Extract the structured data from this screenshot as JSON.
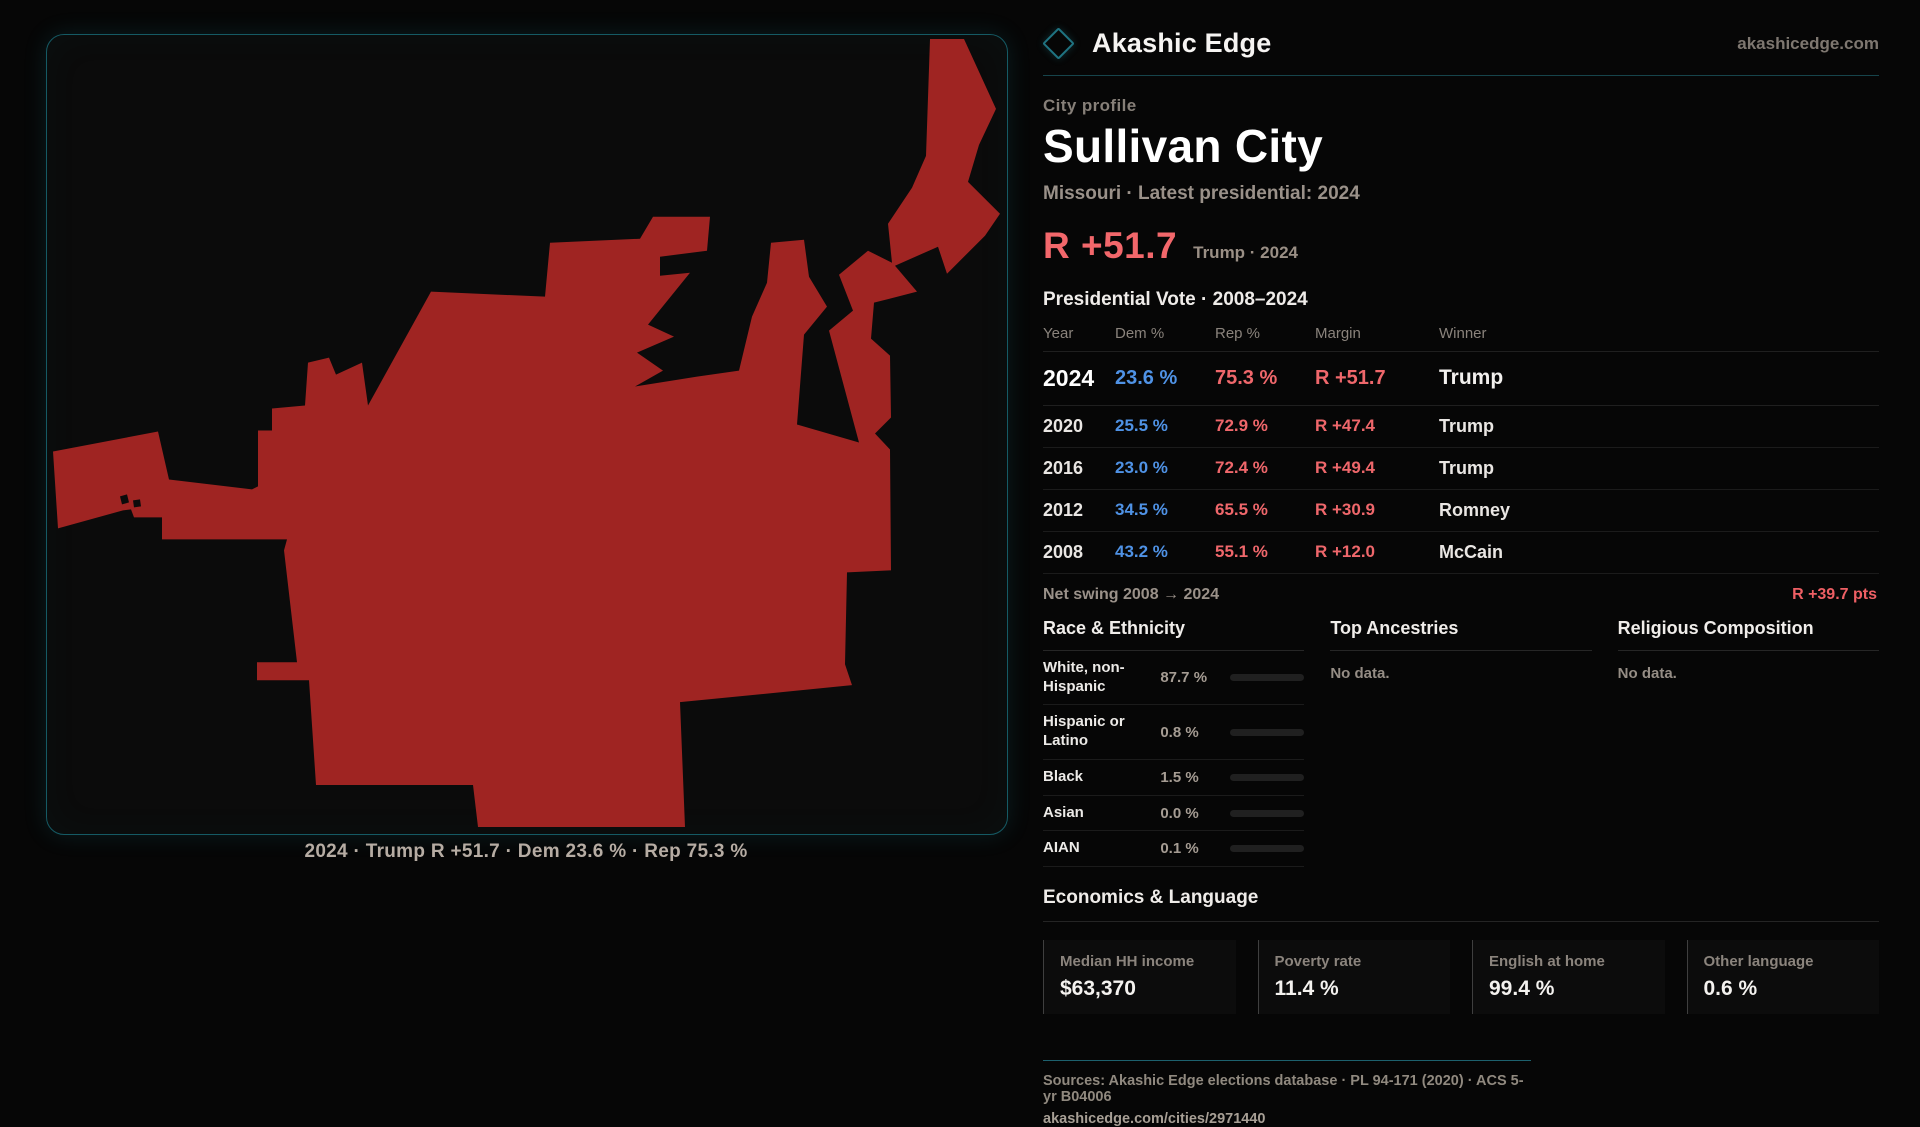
{
  "brand": {
    "name": "Akashic Edge",
    "domain": "akashicedge.com",
    "accent_teal": "#1f7381"
  },
  "profile": {
    "kicker": "City profile",
    "city": "Sullivan City",
    "subtitle": "Missouri · Latest presidential: 2024",
    "headline_margin": "R +51.7",
    "headline_context": "Trump · 2024",
    "margin_color": "#f2676b"
  },
  "map": {
    "caption": "2024 · Trump R +51.7 · Dem 23.6 % · Rep 75.3 %",
    "shape_color": "#9f2422",
    "panel_border_color": "#155a64"
  },
  "vote_table": {
    "title": "Presidential Vote · 2008–2024",
    "columns": [
      "Year",
      "Dem %",
      "Rep %",
      "Margin",
      "Winner"
    ],
    "rows": [
      {
        "year": "2024",
        "dem": "23.6 %",
        "rep": "75.3 %",
        "margin": "R +51.7",
        "winner": "Trump"
      },
      {
        "year": "2020",
        "dem": "25.5 %",
        "rep": "72.9 %",
        "margin": "R +47.4",
        "winner": "Trump"
      },
      {
        "year": "2016",
        "dem": "23.0 %",
        "rep": "72.4 %",
        "margin": "R +49.4",
        "winner": "Trump"
      },
      {
        "year": "2012",
        "dem": "34.5 %",
        "rep": "65.5 %",
        "margin": "R +30.9",
        "winner": "Romney"
      },
      {
        "year": "2008",
        "dem": "43.2 %",
        "rep": "55.1 %",
        "margin": "R +12.0",
        "winner": "McCain"
      }
    ],
    "dem_color": "#4f92e5",
    "rep_color": "#ef676b"
  },
  "net_swing": {
    "label": "Net swing 2008 → 2024",
    "value": "R +39.7 pts"
  },
  "race": {
    "title": "Race & Ethnicity",
    "rows": [
      {
        "label": "White, non-Hispanic",
        "value": "87.7 %",
        "pct": 87.7,
        "color": "#a9bdd2"
      },
      {
        "label": "Hispanic or Latino",
        "value": "0.8 %",
        "pct": 0.8,
        "color": "#d9932f"
      },
      {
        "label": "Black",
        "value": "1.5 %",
        "pct": 1.5,
        "color": "#8d84dd"
      },
      {
        "label": "Asian",
        "value": "0.0 %",
        "pct": 0,
        "color": "#a9bdd2"
      },
      {
        "label": "AIAN",
        "value": "0.1 %",
        "pct": 0.1,
        "color": "#a9bdd2"
      }
    ]
  },
  "ancestries": {
    "title": "Top Ancestries",
    "empty": "No data."
  },
  "religion": {
    "title": "Religious Composition",
    "empty": "No data."
  },
  "economics": {
    "title": "Economics & Language",
    "stats": [
      {
        "label": "Median HH income",
        "value": "$63,370"
      },
      {
        "label": "Poverty rate",
        "value": "11.4 %"
      },
      {
        "label": "English at home",
        "value": "99.4 %"
      },
      {
        "label": "Other language",
        "value": "0.6 %"
      }
    ]
  },
  "footer": {
    "sources": "Sources: Akashic Edge elections database · PL 94-171 (2020) · ACS 5-yr B04006",
    "permalink": "akashicedge.com/cities/2971440"
  }
}
